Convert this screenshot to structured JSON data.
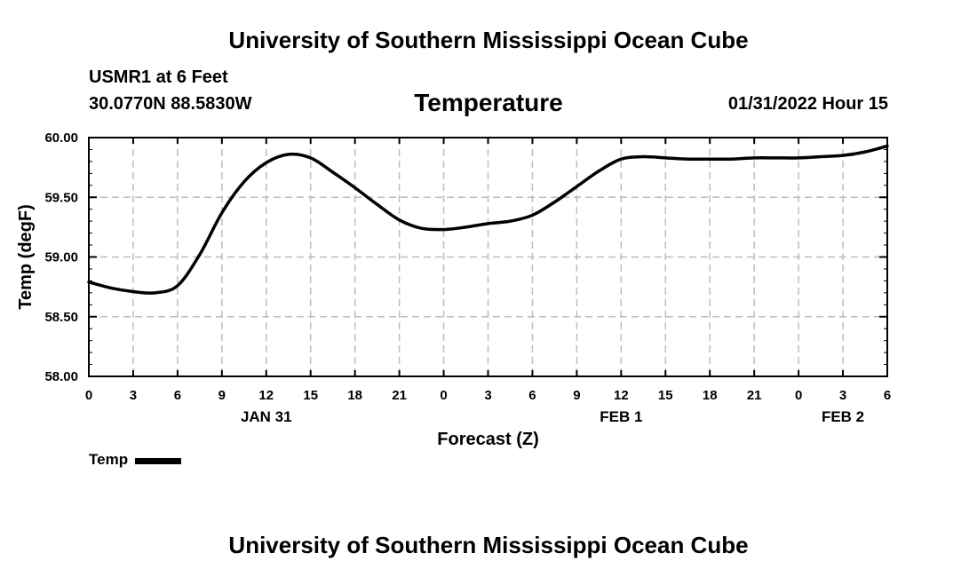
{
  "header": {
    "title": "University of Southern Mississippi Ocean Cube",
    "station": "USMR1 at 6 Feet",
    "coords": "30.0770N  88.5830W",
    "variable": "Temperature",
    "datetime": "01/31/2022 Hour 15"
  },
  "footer": {
    "title": "University of Southern Mississippi Ocean Cube"
  },
  "legend": {
    "label": "Temp",
    "color": "#000000"
  },
  "chart_data": {
    "type": "line",
    "title": "Temperature",
    "xlabel": "Forecast (Z)",
    "ylabel": "Temp (degF)",
    "xlim": [
      0,
      54
    ],
    "ylim": [
      58.0,
      60.0
    ],
    "grid": true,
    "x_tick_values": [
      0,
      3,
      6,
      9,
      12,
      15,
      18,
      21,
      24,
      27,
      30,
      33,
      36,
      39,
      42,
      45,
      48,
      51,
      54
    ],
    "x_tick_labels": [
      "0",
      "3",
      "6",
      "9",
      "12",
      "15",
      "18",
      "21",
      "0",
      "3",
      "6",
      "9",
      "12",
      "15",
      "18",
      "21",
      "0",
      "3",
      "6"
    ],
    "y_tick_values": [
      58.0,
      58.5,
      59.0,
      59.5,
      60.0
    ],
    "y_tick_labels": [
      "58.00",
      "58.50",
      "59.00",
      "59.50",
      "60.00"
    ],
    "date_labels": [
      {
        "label": "JAN 31",
        "x": 12
      },
      {
        "label": "FEB 1",
        "x": 36
      },
      {
        "label": "FEB 2",
        "x": 51
      }
    ],
    "series": [
      {
        "name": "Temp",
        "color": "#000000",
        "x": [
          0,
          1.5,
          3,
          4.5,
          6,
          7.5,
          9,
          10.5,
          12,
          13.5,
          15,
          16.5,
          18,
          19.5,
          21,
          22.5,
          24,
          25.5,
          27,
          28.5,
          30,
          31.5,
          33,
          34.5,
          36,
          37.5,
          39,
          40.5,
          42,
          43.5,
          45,
          46.5,
          48,
          49.5,
          51,
          52.5,
          54
        ],
        "values": [
          58.79,
          58.74,
          58.71,
          58.7,
          58.76,
          59.02,
          59.37,
          59.63,
          59.79,
          59.86,
          59.83,
          59.71,
          59.58,
          59.44,
          59.31,
          59.24,
          59.23,
          59.25,
          59.28,
          59.3,
          59.35,
          59.46,
          59.59,
          59.72,
          59.82,
          59.84,
          59.83,
          59.82,
          59.82,
          59.82,
          59.83,
          59.83,
          59.83,
          59.84,
          59.85,
          59.88,
          59.93
        ]
      }
    ]
  }
}
